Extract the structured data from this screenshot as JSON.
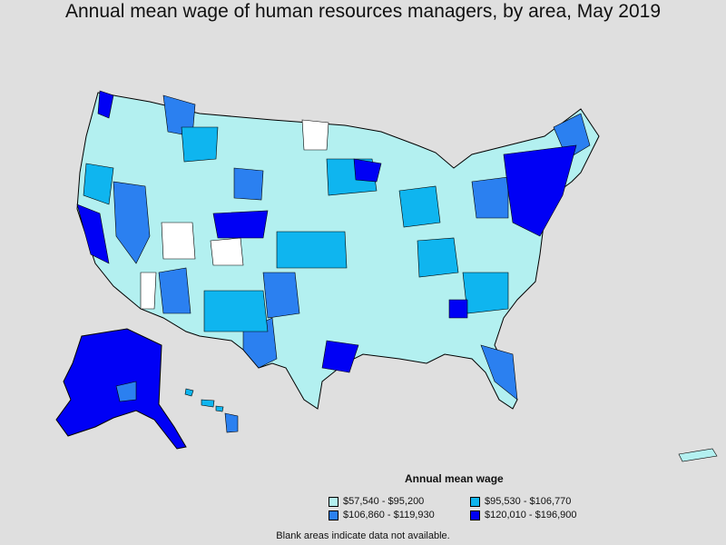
{
  "title": "Annual mean wage of human resources managers, by area, May 2019",
  "legend": {
    "title": "Annual mean wage",
    "items": [
      {
        "label": "$57,540 - $95,200",
        "color": "#b3f0f0"
      },
      {
        "label": "$95,530 - $106,770",
        "color": "#0fb5ef"
      },
      {
        "label": "$106,860 - $119,930",
        "color": "#2b80f0"
      },
      {
        "label": "$120,010 - $196,900",
        "color": "#0000f5"
      }
    ]
  },
  "footnote": "Blank areas indicate data not available.",
  "colors": {
    "background": "#dfdfdf",
    "blank": "#ffffff",
    "border": "#000000"
  }
}
